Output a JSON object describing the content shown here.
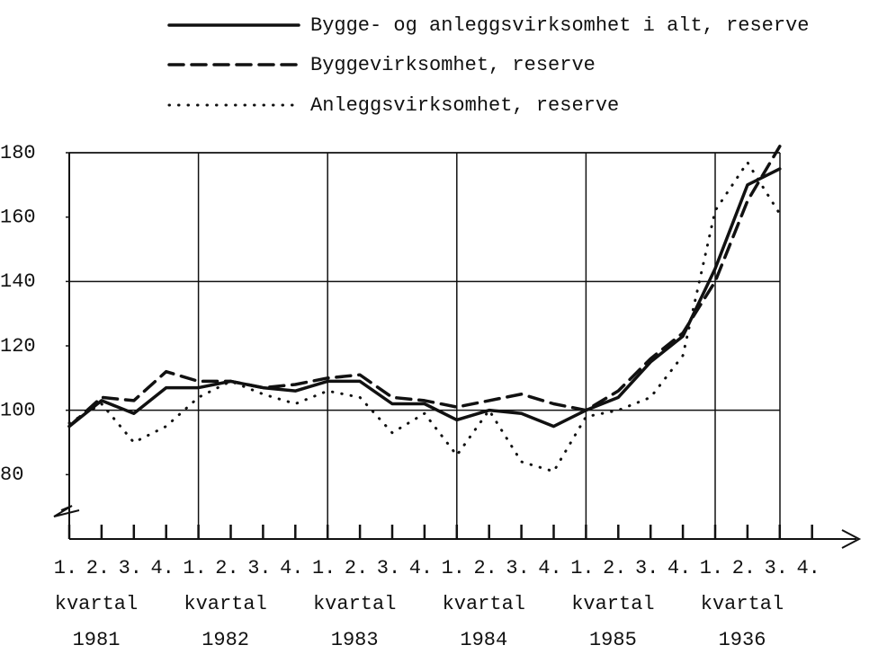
{
  "chart_data": {
    "type": "line",
    "categories": [
      "1.",
      "2.",
      "3.",
      "4.",
      "1.",
      "2.",
      "3.",
      "4.",
      "1.",
      "2.",
      "3.",
      "4.",
      "1.",
      "2.",
      "3.",
      "4.",
      "1.",
      "2.",
      "3.",
      "4.",
      "1.",
      "2.",
      "3.",
      "4."
    ],
    "x_groups": [
      {
        "label": "kvartal",
        "year": "1981"
      },
      {
        "label": "kvartal",
        "year": "1982"
      },
      {
        "label": "kvartal",
        "year": "1983"
      },
      {
        "label": "kvartal",
        "year": "1984"
      },
      {
        "label": "kvartal",
        "year": "1985"
      },
      {
        "label": "kvartal",
        "year": "1936"
      }
    ],
    "series": [
      {
        "name": "Bygge- og anleggsvirksomhet i alt, reserve",
        "color": "#111111",
        "style": "solid",
        "values": [
          95,
          103,
          99,
          107,
          107,
          109,
          107,
          106,
          109,
          109,
          102,
          102,
          97,
          100,
          99,
          95,
          100,
          104,
          115,
          123,
          144,
          170,
          175,
          null
        ]
      },
      {
        "name": "Byggevirksomhet, reserve",
        "color": "#111111",
        "style": "dashed",
        "values": [
          95,
          104,
          103,
          112,
          109,
          109,
          107,
          108,
          110,
          111,
          104,
          103,
          101,
          103,
          105,
          102,
          100,
          106,
          116,
          124,
          140,
          165,
          182,
          null
        ]
      },
      {
        "name": "Anleggsvirksomhet, reserve",
        "color": "#111111",
        "style": "dotted",
        "values": [
          96,
          102,
          90,
          95,
          104,
          109,
          105,
          102,
          106,
          104,
          93,
          99,
          86,
          100,
          84,
          81,
          98,
          100,
          104,
          117,
          162,
          177,
          161,
          null
        ]
      }
    ],
    "ylim": [
      60,
      180
    ],
    "yticks": [
      80,
      100,
      120,
      140,
      160,
      180
    ],
    "ygrid": [
      100,
      140,
      180
    ]
  }
}
